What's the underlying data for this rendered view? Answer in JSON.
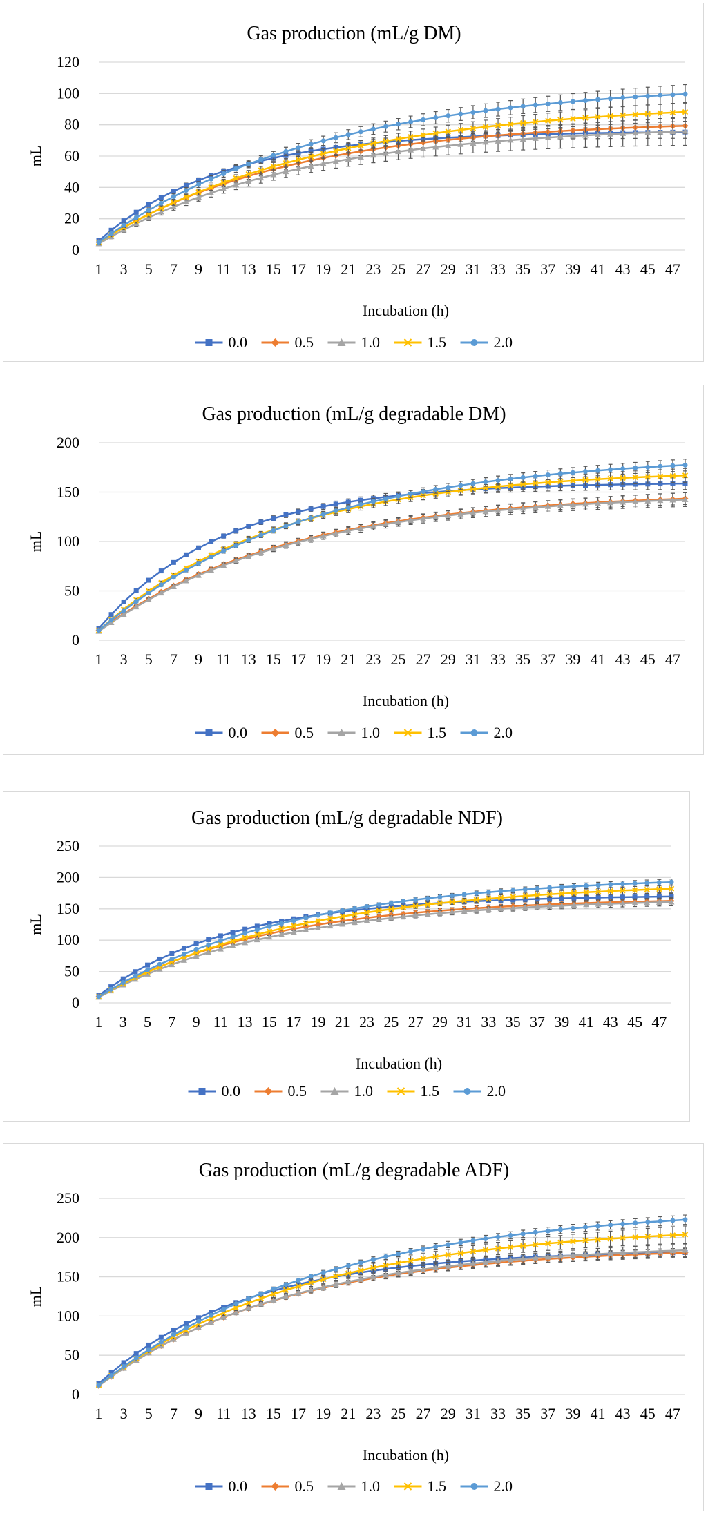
{
  "series_style": [
    {
      "label": "0.0",
      "color": "#4472C4",
      "marker": "square"
    },
    {
      "label": "0.5",
      "color": "#ED7D31",
      "marker": "diamond"
    },
    {
      "label": "1.0",
      "color": "#A5A5A5",
      "marker": "triangle"
    },
    {
      "label": "1.5",
      "color": "#FFC000",
      "marker": "x"
    },
    {
      "label": "2.0",
      "color": "#5B9BD5",
      "marker": "circle"
    }
  ],
  "chart_data": [
    {
      "type": "line",
      "title": "Gas production (mL/g DM)",
      "xlabel": "Incubation (h)",
      "ylabel": "mL",
      "x": [
        1,
        48
      ],
      "x_tick_labels": [
        "1",
        "3",
        "5",
        "7",
        "9",
        "11",
        "13",
        "15",
        "17",
        "19",
        "21",
        "23",
        "25",
        "27",
        "29",
        "31",
        "33",
        "35",
        "37",
        "39",
        "41",
        "43",
        "45",
        "47"
      ],
      "ylim": [
        0,
        120
      ],
      "y_ticks": [
        0,
        20,
        40,
        60,
        80,
        100,
        120
      ],
      "grid": true,
      "legend": "bottom",
      "series": [
        {
          "name": "0.0",
          "start": 6,
          "end": 76,
          "k": 0.1,
          "err": 3
        },
        {
          "name": "0.5",
          "start": 5,
          "end": 83,
          "k": 0.065,
          "err": 4
        },
        {
          "name": "1.0",
          "start": 4,
          "end": 80,
          "k": 0.062,
          "err": 8
        },
        {
          "name": "1.5",
          "start": 5,
          "end": 95,
          "k": 0.055,
          "err": 5
        },
        {
          "name": "2.0",
          "start": 5,
          "end": 107,
          "k": 0.056,
          "err": 5
        }
      ]
    },
    {
      "type": "line",
      "title": "Gas production (mL/g degradable DM)",
      "xlabel": "Incubation (h)",
      "ylabel": "mL",
      "x": [
        1,
        48
      ],
      "x_tick_labels": [
        "1",
        "3",
        "5",
        "7",
        "9",
        "11",
        "13",
        "15",
        "17",
        "19",
        "21",
        "23",
        "25",
        "27",
        "29",
        "31",
        "33",
        "35",
        "37",
        "39",
        "41",
        "43",
        "45",
        "47"
      ],
      "ylim": [
        0,
        200
      ],
      "y_ticks": [
        0,
        50,
        100,
        150,
        200
      ],
      "grid": true,
      "legend": "bottom",
      "series": [
        {
          "name": "0.0",
          "start": 12,
          "end": 160,
          "k": 0.1,
          "err": 5
        },
        {
          "name": "0.5",
          "start": 10,
          "end": 150,
          "k": 0.065,
          "err": 5
        },
        {
          "name": "1.0",
          "start": 9,
          "end": 149,
          "k": 0.065,
          "err": 6
        },
        {
          "name": "1.5",
          "start": 10,
          "end": 173,
          "k": 0.07,
          "err": 6
        },
        {
          "name": "2.0",
          "start": 10,
          "end": 188,
          "k": 0.06,
          "err": 5
        }
      ]
    },
    {
      "type": "line",
      "title": "Gas production (mL/g degradable NDF)",
      "xlabel": "Incubation (h)",
      "ylabel": "mL",
      "x": [
        1,
        48
      ],
      "x_tick_labels": [
        "1",
        "3",
        "5",
        "7",
        "9",
        "11",
        "13",
        "15",
        "17",
        "19",
        "21",
        "23",
        "25",
        "27",
        "29",
        "31",
        "33",
        "35",
        "37",
        "39",
        "41",
        "43",
        "45",
        "47"
      ],
      "ylim": [
        0,
        250
      ],
      "y_ticks": [
        0,
        50,
        100,
        150,
        200,
        250
      ],
      "grid": true,
      "legend": "bottom",
      "series": [
        {
          "name": "0.0",
          "start": 12,
          "end": 172,
          "k": 0.09,
          "err": 4
        },
        {
          "name": "0.5",
          "start": 10,
          "end": 168,
          "k": 0.072,
          "err": 4
        },
        {
          "name": "1.0",
          "start": 9,
          "end": 168,
          "k": 0.066,
          "err": 5
        },
        {
          "name": "1.5",
          "start": 10,
          "end": 193,
          "k": 0.06,
          "err": 5
        },
        {
          "name": "2.0",
          "start": 10,
          "end": 203,
          "k": 0.062,
          "err": 4
        }
      ]
    },
    {
      "type": "line",
      "title": "Gas production (mL/g degradable ADF)",
      "xlabel": "Incubation (h)",
      "ylabel": "mL",
      "x": [
        1,
        48
      ],
      "x_tick_labels": [
        "1",
        "3",
        "5",
        "7",
        "9",
        "11",
        "13",
        "15",
        "17",
        "19",
        "21",
        "23",
        "25",
        "27",
        "29",
        "31",
        "33",
        "35",
        "37",
        "39",
        "41",
        "43",
        "45",
        "47"
      ],
      "ylim": [
        0,
        250
      ],
      "y_ticks": [
        0,
        50,
        100,
        150,
        200,
        250
      ],
      "grid": true,
      "legend": "bottom",
      "series": [
        {
          "name": "0.0",
          "start": 14,
          "end": 184,
          "k": 0.085,
          "err": 4
        },
        {
          "name": "0.5",
          "start": 11,
          "end": 188,
          "k": 0.068,
          "err": 5
        },
        {
          "name": "1.0",
          "start": 11,
          "end": 192,
          "k": 0.066,
          "err": 7
        },
        {
          "name": "1.5",
          "start": 12,
          "end": 216,
          "k": 0.06,
          "err": 10
        },
        {
          "name": "2.0",
          "start": 12,
          "end": 240,
          "k": 0.055,
          "err": 5
        }
      ]
    }
  ]
}
